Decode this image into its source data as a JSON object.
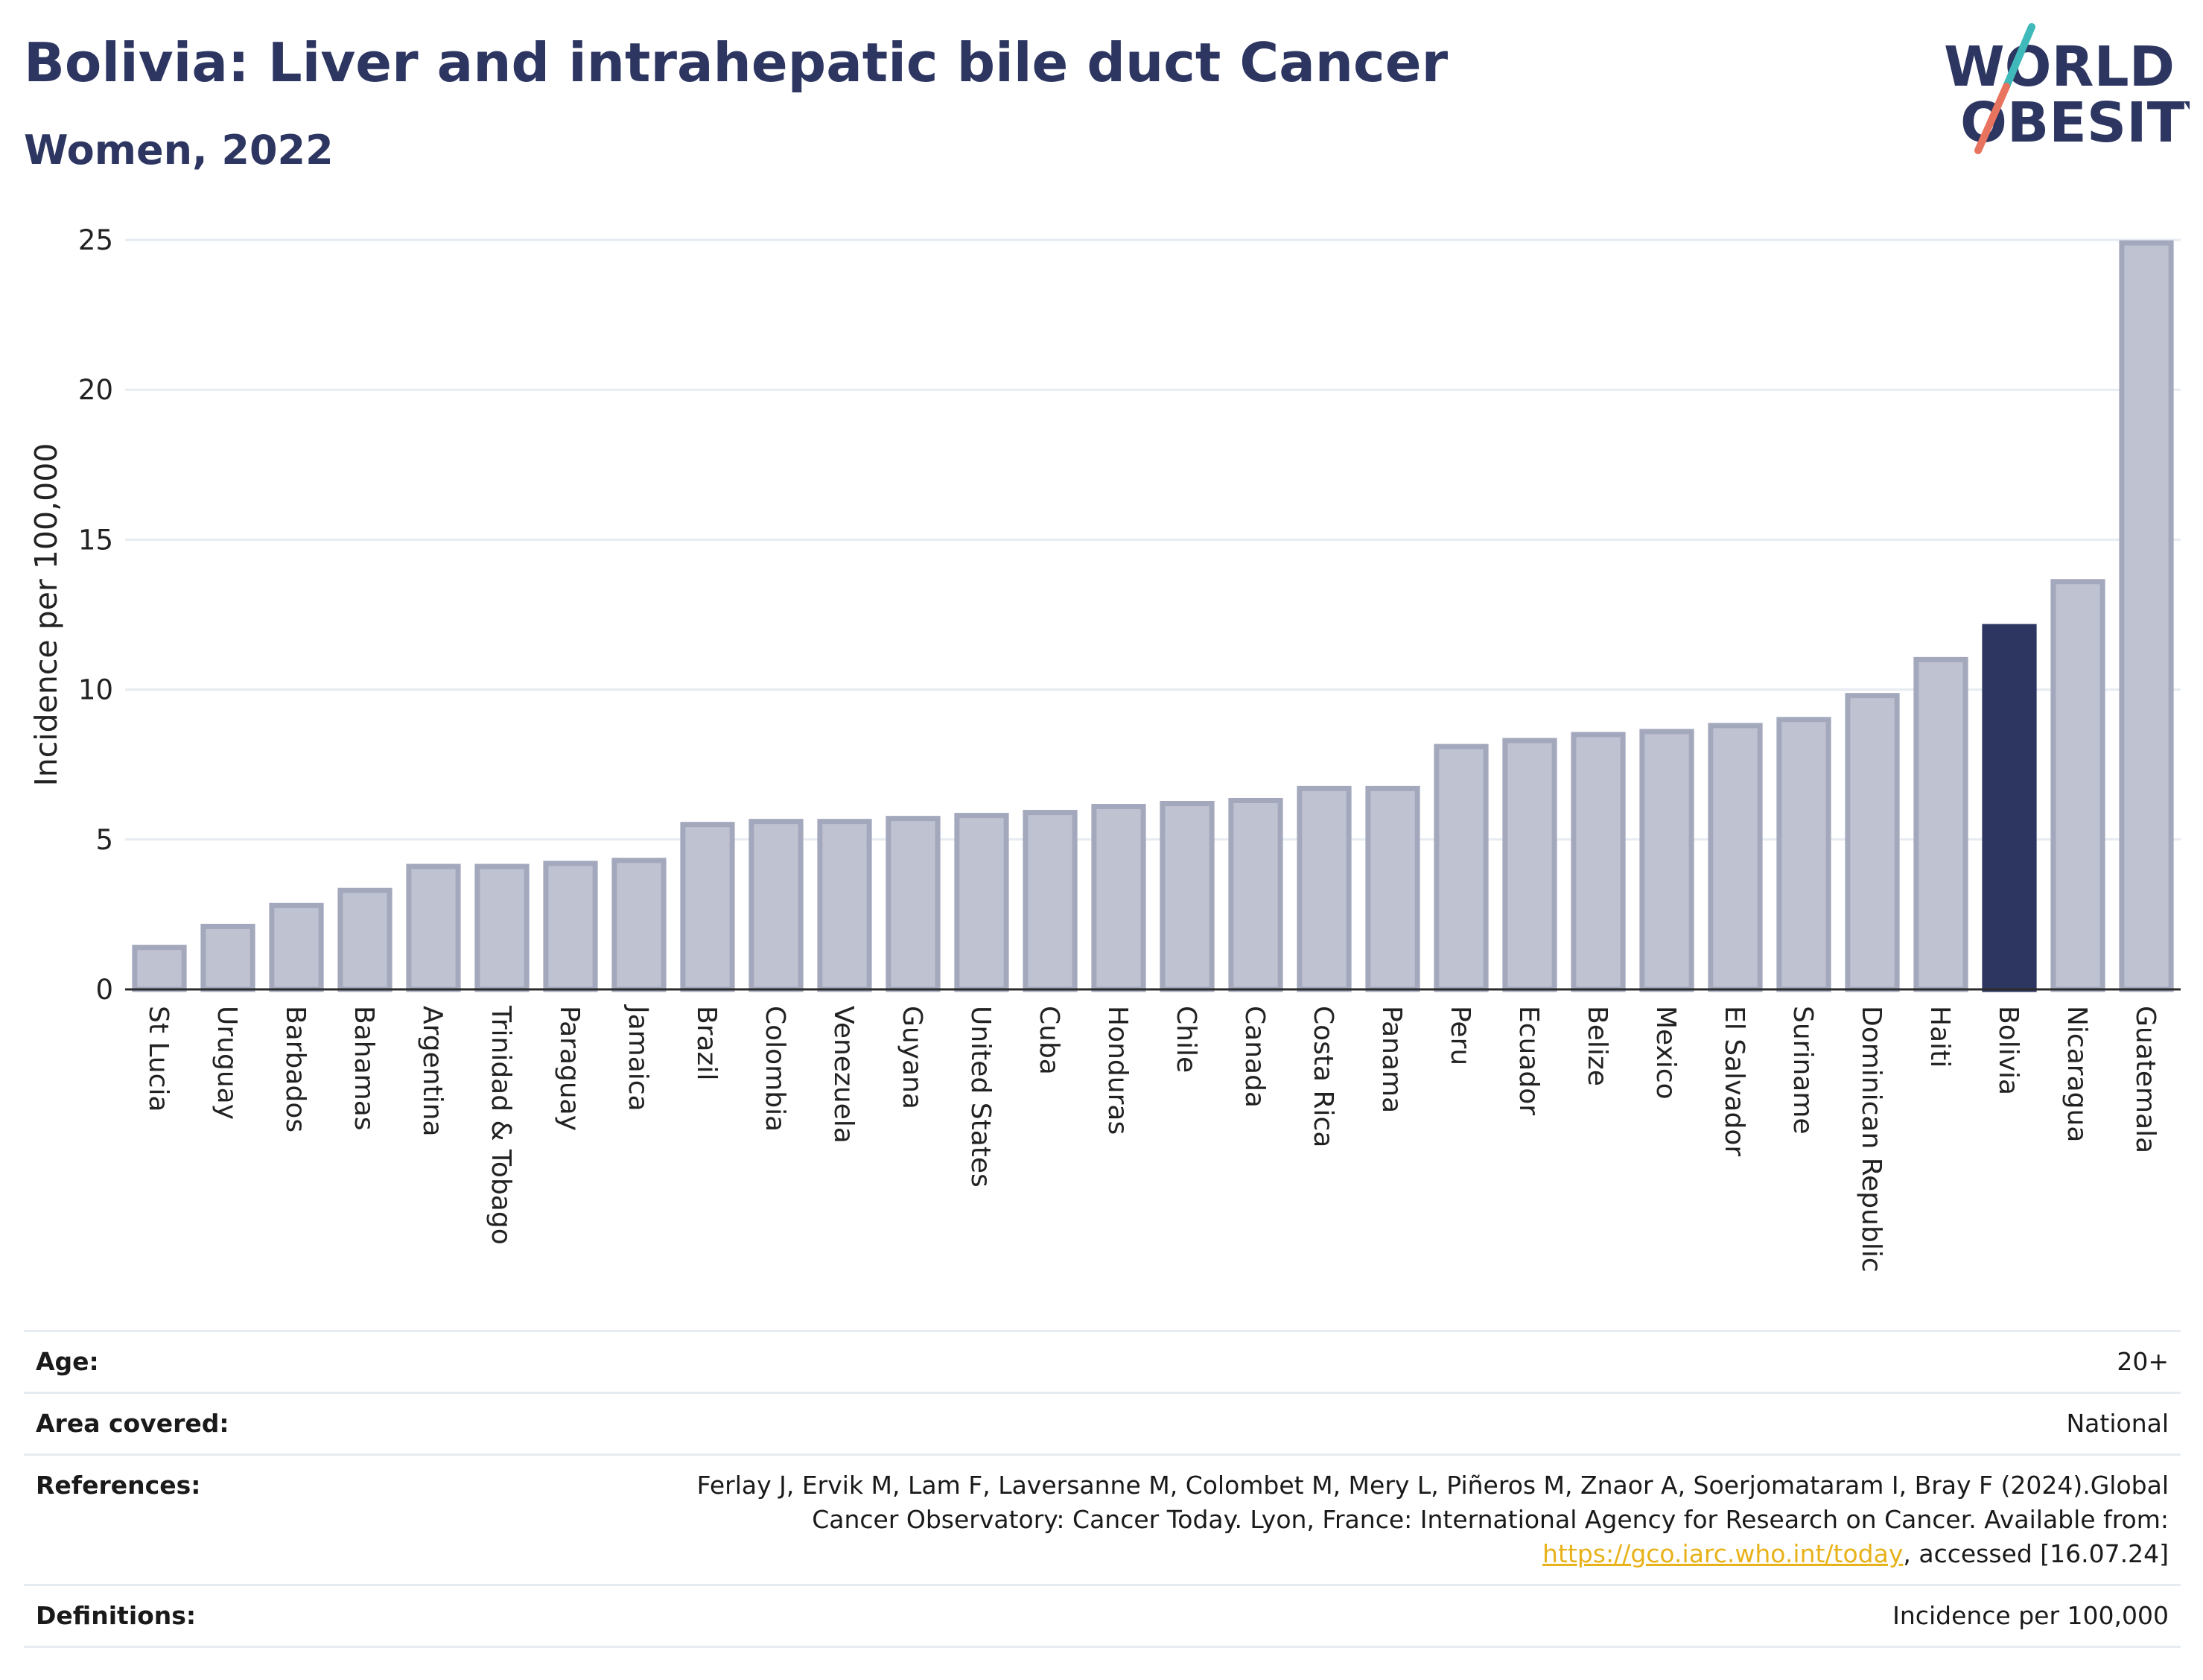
{
  "header": {
    "title": "Bolivia: Liver and intrahepatic bile duct Cancer",
    "subtitle": "Women, 2022"
  },
  "logo": {
    "line1": "WORLD",
    "line2": "OBESITY",
    "slash_colors": [
      "#3fb9b9",
      "#e8735f"
    ]
  },
  "colors": {
    "bar": "#bfc2d0",
    "bar_stroke": "#a3a8bd",
    "highlight": "#2d3561",
    "grid": "#e6ecf1"
  },
  "chart_data": {
    "type": "bar",
    "ylabel": "Incidence per 100,000",
    "ylim": [
      0,
      25
    ],
    "yticks": [
      0,
      5,
      10,
      15,
      20,
      25
    ],
    "highlight": "Bolivia",
    "categories": [
      "St Lucia",
      "Uruguay",
      "Barbados",
      "Bahamas",
      "Argentina",
      "Trinidad & Tobago",
      "Paraguay",
      "Jamaica",
      "Brazil",
      "Colombia",
      "Venezuela",
      "Guyana",
      "United States",
      "Cuba",
      "Honduras",
      "Chile",
      "Canada",
      "Costa Rica",
      "Panama",
      "Peru",
      "Ecuador",
      "Belize",
      "Mexico",
      "El Salvador",
      "Suriname",
      "Dominican Republic",
      "Haiti",
      "Bolivia",
      "Nicaragua",
      "Guatemala"
    ],
    "values": [
      1.4,
      2.1,
      2.8,
      3.3,
      4.1,
      4.1,
      4.2,
      4.3,
      5.5,
      5.6,
      5.6,
      5.7,
      5.8,
      5.9,
      6.1,
      6.2,
      6.3,
      6.7,
      6.7,
      8.1,
      8.3,
      8.5,
      8.6,
      8.8,
      9.0,
      9.8,
      11.0,
      12.1,
      13.6,
      24.9
    ]
  },
  "meta": [
    {
      "key": "Age:",
      "value": "20+"
    },
    {
      "key": "Area covered:",
      "value": "National"
    },
    {
      "key": "References:",
      "value_before": "Ferlay J, Ervik M, Lam F, Laversanne M, Colombet M, Mery L, Piñeros M, Znaor A, Soerjomataram I, Bray F (2024).Global Cancer Observatory: Cancer Today. Lyon, France: International Agency for Research on Cancer. Available from: ",
      "link": "https://gco.iarc.who.int/today",
      "value_after": ", accessed [16.07.24]"
    },
    {
      "key": "Definitions:",
      "value": "Incidence per 100,000"
    }
  ]
}
